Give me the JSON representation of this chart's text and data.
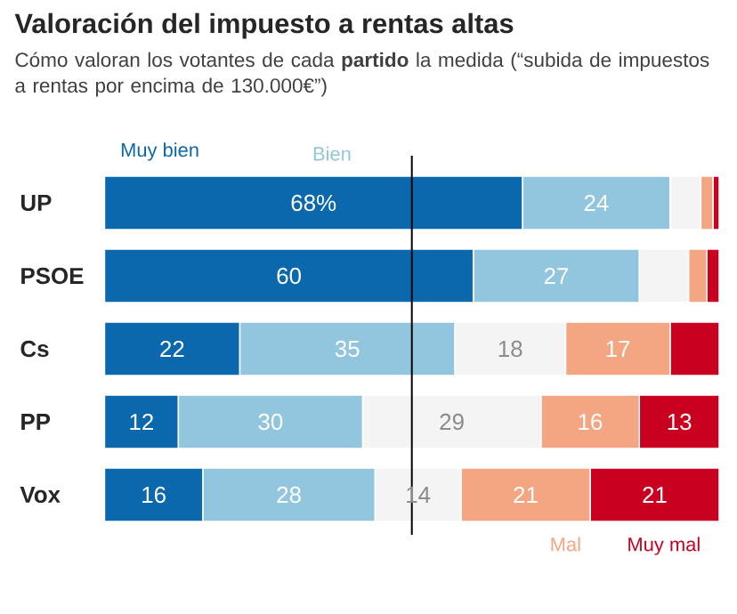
{
  "chart_data": {
    "type": "bar",
    "orientation": "horizontal",
    "stacked": true,
    "title": "Valoración del impuesto a rentas altas",
    "subtitle": "Cómo valoran los votantes de cada **partido** la medida (“subida de impuestos a rentas por encima de 130.000€”)",
    "categories": [
      "UP",
      "PSOE",
      "Cs",
      "PP",
      "Vox"
    ],
    "series": [
      {
        "name": "Muy bien",
        "color": "#0b68ad",
        "values": [
          68,
          60,
          22,
          12,
          16
        ],
        "value_labels": [
          "68%",
          "60",
          "22",
          "12",
          "16"
        ]
      },
      {
        "name": "Bien",
        "color": "#92c5de",
        "values": [
          24,
          27,
          35,
          30,
          28
        ],
        "value_labels": [
          "24",
          "27",
          "35",
          "30",
          "28"
        ]
      },
      {
        "color": "#f4f4f4",
        "values": [
          5,
          8,
          18,
          29,
          14
        ],
        "value_labels": [
          null,
          null,
          "18",
          "29",
          "14"
        ]
      },
      {
        "name": "Mal",
        "color": "#f4a582",
        "values": [
          2,
          3,
          17,
          16,
          21
        ],
        "value_labels": [
          null,
          null,
          "17",
          "16",
          "21"
        ]
      },
      {
        "name": "Muy mal",
        "color": "#ca0020",
        "values": [
          1,
          2,
          8,
          13,
          21
        ],
        "value_labels": [
          null,
          null,
          null,
          "13",
          "21"
        ]
      }
    ],
    "xlim": [
      0,
      100
    ],
    "tick_labels": "y",
    "ref_lines": [
      {
        "axis": "x",
        "value": 50,
        "color": "#000000"
      }
    ]
  }
}
